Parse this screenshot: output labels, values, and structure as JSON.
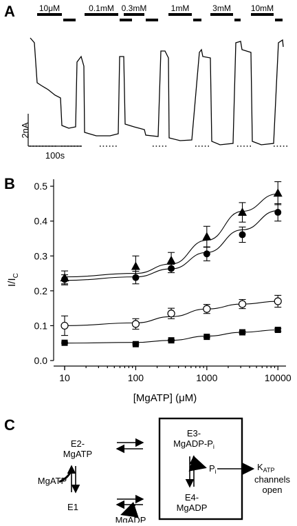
{
  "panel_a": {
    "letter": "A",
    "concentrations": [
      "10μM",
      "0.1mM",
      "0.3mM",
      "1mM",
      "3mM",
      "10mM"
    ],
    "scale_current": "2nA",
    "scale_time": "100s"
  },
  "panel_b": {
    "letter": "B"
  },
  "panel_c": {
    "letter": "C",
    "states": {
      "e2_line1": "E2-",
      "e2_line2": "MgATP",
      "e1": "E1",
      "e3_line1": "E3-",
      "e3_line2": "MgADP-P",
      "e3_sub": "i",
      "e4_line1": "E4-",
      "e4_line2": "MgADP"
    },
    "labels": {
      "mgatp": "MgATP",
      "mgadp": "MgADP",
      "pi": "P",
      "pi_sub": "i",
      "katp_main": "K",
      "katp_sub": "ATP",
      "channels": "channels",
      "open": "open"
    }
  },
  "chart_data": {
    "type": "scatter",
    "xlabel": "[MgATP] (μM)",
    "ylabel": "I/I",
    "ylabel_sub": "C",
    "xscale": "log",
    "xlim": [
      7,
      13000
    ],
    "ylim": [
      0,
      0.52
    ],
    "xticks": [
      10,
      100,
      1000,
      10000
    ],
    "xtick_labels": [
      "10",
      "100",
      "1000",
      "10000"
    ],
    "yticks": [
      0.0,
      0.1,
      0.2,
      0.3,
      0.4,
      0.5
    ],
    "ytick_labels": [
      "0.0",
      "0.1",
      "0.2",
      "0.3",
      "0.4",
      "0.5"
    ],
    "x": [
      10,
      100,
      316,
      1000,
      3162,
      10000
    ],
    "series": [
      {
        "marker": "triangle",
        "values": [
          0.237,
          0.27,
          0.287,
          0.355,
          0.425,
          0.48
        ],
        "errors": [
          0.02,
          0.03,
          0.023,
          0.03,
          0.028,
          0.033
        ],
        "fit": [
          0.24,
          0.25,
          0.277,
          0.345,
          0.428,
          0.478
        ]
      },
      {
        "marker": "circle",
        "values": [
          0.233,
          0.238,
          0.264,
          0.306,
          0.361,
          0.425
        ],
        "errors": [
          0.013,
          0.018,
          0.012,
          0.02,
          0.022,
          0.025
        ],
        "fit": [
          0.23,
          0.24,
          0.263,
          0.31,
          0.375,
          0.43
        ]
      },
      {
        "marker": "open-circle",
        "values": [
          0.1,
          0.105,
          0.135,
          0.148,
          0.162,
          0.17
        ],
        "errors": [
          0.028,
          0.015,
          0.015,
          0.013,
          0.013,
          0.017
        ],
        "fit": [
          0.1,
          0.108,
          0.126,
          0.148,
          0.162,
          0.17
        ]
      },
      {
        "marker": "square",
        "values": [
          0.051,
          0.047,
          0.058,
          0.068,
          0.081,
          0.088
        ],
        "errors": [
          0.002,
          0.002,
          0.002,
          0.002,
          0.003,
          0.004
        ],
        "fit": [
          0.05,
          0.052,
          0.058,
          0.07,
          0.081,
          0.088
        ]
      }
    ]
  }
}
